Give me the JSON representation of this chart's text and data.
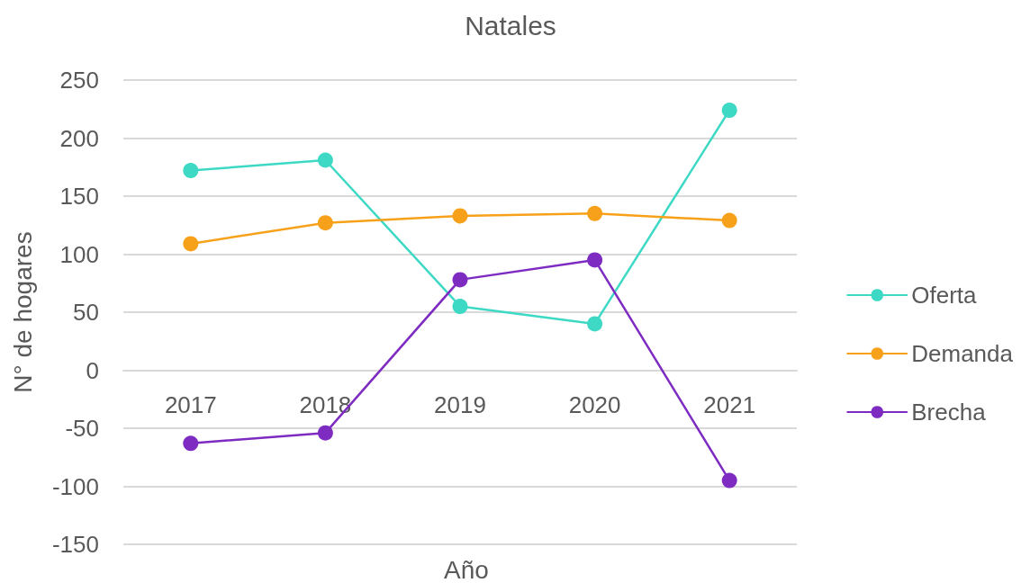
{
  "chart_data": {
    "type": "line",
    "title": "Natales",
    "xlabel": "Año",
    "ylabel": "N° de hogares",
    "categories": [
      "2017",
      "2018",
      "2019",
      "2020",
      "2021"
    ],
    "series": [
      {
        "name": "Oferta",
        "color": "#3dd9c4",
        "values": [
          172,
          181,
          55,
          40,
          224
        ]
      },
      {
        "name": "Demanda",
        "color": "#f7a11a",
        "values": [
          109,
          127,
          133,
          135,
          129
        ]
      },
      {
        "name": "Brecha",
        "color": "#7e2bc2",
        "values": [
          -63,
          -54,
          78,
          95,
          -95
        ]
      }
    ],
    "ylim": [
      -150,
      250
    ],
    "yticks": [
      -150,
      -100,
      -50,
      0,
      50,
      100,
      150,
      200,
      250
    ],
    "grid": "y",
    "legend": "right",
    "marker": "circle",
    "line_style": "solid"
  }
}
